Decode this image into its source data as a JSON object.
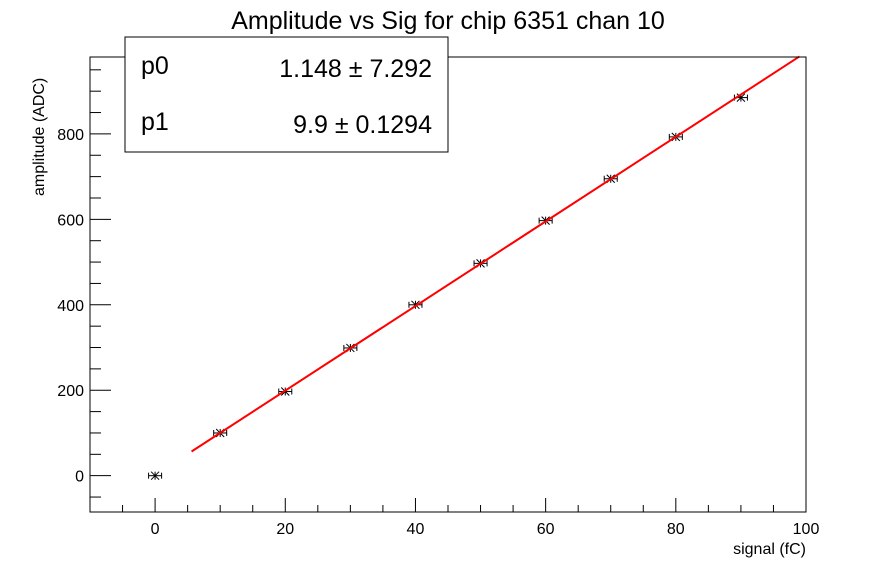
{
  "chart_data": {
    "type": "scatter",
    "title": "Amplitude vs Sig for chip 6351 chan 10",
    "xlabel": "signal (fC)",
    "ylabel": "amplitude (ADC)",
    "xlim": [
      -10,
      100
    ],
    "ylim": [
      -85,
      980
    ],
    "xticks": [
      0,
      20,
      40,
      60,
      80,
      100
    ],
    "yticks": [
      0,
      200,
      400,
      600,
      800
    ],
    "grid": false,
    "series": [
      {
        "marker": "star-with-errorbars",
        "color": "#000000",
        "x": [
          0,
          10,
          20,
          30,
          40,
          50,
          60,
          70,
          80,
          90
        ],
        "y": [
          0,
          100,
          197,
          299,
          400,
          497,
          597,
          695,
          793,
          885
        ],
        "xerr": 1
      }
    ],
    "fit": {
      "type": "line",
      "color": "#ff0000",
      "x_range": [
        5.6,
        99
      ],
      "p0": 1.148,
      "p1": 9.9
    },
    "stats_box": {
      "placement": "top-left",
      "rows": [
        {
          "name": "p0",
          "value": "1.148 ± 7.292"
        },
        {
          "name": "p1",
          "value": "9.9 ± 0.1294"
        }
      ]
    }
  }
}
